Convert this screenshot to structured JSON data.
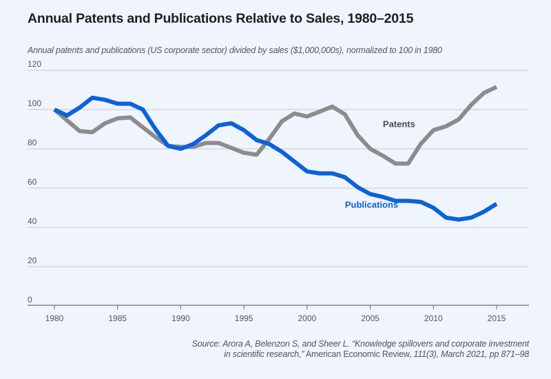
{
  "chart_data": {
    "type": "line",
    "title": "Annual Patents and Publications Relative to Sales, 1980–2015",
    "subtitle": "Annual patents and publications (US corporate sector) divided by sales ($1,000,000s), normalized to 100 in 1980",
    "xlabel": "",
    "ylabel": "",
    "xlim": [
      1980,
      2015
    ],
    "ylim": [
      0,
      120
    ],
    "grid": true,
    "y_ticks": [
      0,
      20,
      40,
      60,
      80,
      100,
      120
    ],
    "x_ticks": [
      1980,
      1985,
      1990,
      1995,
      2000,
      2005,
      2010,
      2015
    ],
    "x_tick_labels": [
      "1980",
      "1985",
      "1990",
      "1995",
      "2000",
      "2005",
      "2010",
      "2015"
    ],
    "y_tick_labels": [
      "0",
      "20",
      "40",
      "60",
      "80",
      "100",
      "120"
    ],
    "x": [
      1980,
      1981,
      1982,
      1983,
      1984,
      1985,
      1986,
      1987,
      1988,
      1989,
      1990,
      1991,
      1992,
      1993,
      1994,
      1995,
      1996,
      1997,
      1998,
      1999,
      2000,
      2001,
      2002,
      2003,
      2004,
      2005,
      2006,
      2007,
      2008,
      2009,
      2010,
      2011,
      2012,
      2013,
      2014,
      2015
    ],
    "series": [
      {
        "name": "Publications",
        "color": "#0a62dc",
        "values": [
          100,
          97,
          101,
          106,
          105,
          103,
          103,
          100,
          90,
          81.5,
          80,
          82.5,
          87,
          92,
          93,
          89.5,
          84.5,
          82.5,
          78.5,
          73.5,
          68.5,
          67.5,
          67.5,
          65.5,
          60.5,
          57,
          55.5,
          53.5,
          53.5,
          53,
          50,
          45,
          44,
          45,
          48,
          52
        ]
      },
      {
        "name": "Patents",
        "color": "#8c8c8c",
        "values": [
          100,
          94.5,
          89,
          88.5,
          93,
          95.5,
          96,
          91,
          86,
          81.5,
          81,
          81,
          83,
          83,
          80.5,
          78,
          77,
          85,
          94,
          98,
          96.5,
          99,
          101.5,
          97.5,
          87,
          80,
          76.5,
          72.5,
          72.5,
          82.5,
          89.5,
          91.5,
          95,
          102.5,
          108.5,
          111.5
        ]
      }
    ],
    "annotations": [
      {
        "text": "Patents",
        "series": "Patents",
        "near_x": 2006,
        "near_y": 91
      },
      {
        "text": "Publications",
        "series": "Publications",
        "near_x": 2003,
        "near_y": 50
      }
    ],
    "source": {
      "prefix": "Source: Arora A,  Belenzon S, and Sheer L. “Knowledge spillovers and corporate investment",
      "line2_italic": "in scientific research,”",
      "journal": " American Economic Review, ",
      "details": "111(3), March 2021, pp 871–98"
    }
  }
}
